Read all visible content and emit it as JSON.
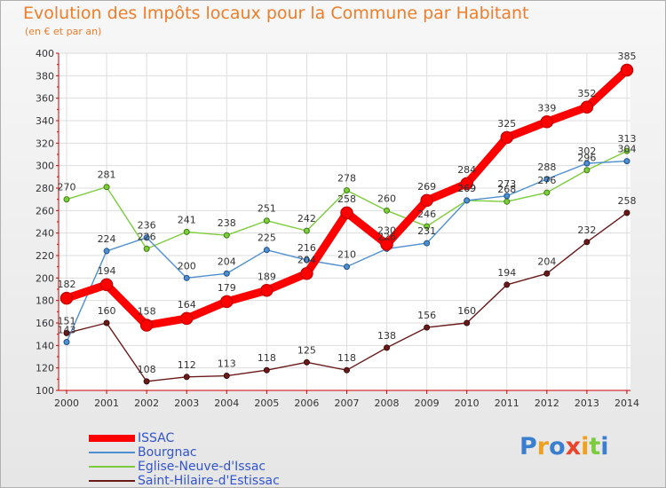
{
  "chart_data": {
    "type": "line",
    "title": "Evolution des Impôts locaux pour la Commune par Habitant",
    "subtitle": "(en € et par an)",
    "xlabel": "",
    "ylabel": "",
    "categories": [
      "2000",
      "2001",
      "2002",
      "2003",
      "2004",
      "2005",
      "2006",
      "2007",
      "2008",
      "2009",
      "2010",
      "2011",
      "2012",
      "2013",
      "2014"
    ],
    "ylim": [
      100,
      400
    ],
    "yticks": [
      100,
      120,
      140,
      160,
      180,
      200,
      220,
      240,
      260,
      280,
      300,
      320,
      340,
      360,
      380,
      400
    ],
    "grid": true,
    "legend_position": "bottom-left",
    "series": [
      {
        "name": "ISSAC",
        "color": "#ff0000",
        "values": [
          182,
          194,
          158,
          164,
          179,
          189,
          204,
          258,
          230,
          269,
          284,
          325,
          339,
          352,
          385
        ]
      },
      {
        "name": "Bourgnac",
        "color": "#4f8fd0",
        "values": [
          143,
          224,
          236,
          200,
          204,
          225,
          216,
          210,
          226,
          231,
          269,
          273,
          288,
          302,
          304
        ]
      },
      {
        "name": "Eglise-Neuve-d'Issac",
        "color": "#7ccc3c",
        "values": [
          270,
          281,
          226,
          241,
          238,
          251,
          242,
          278,
          260,
          246,
          269,
          268,
          276,
          296,
          313
        ]
      },
      {
        "name": "Saint-Hilaire-d'Estissac",
        "color": "#6b1a1a",
        "values": [
          151,
          160,
          108,
          112,
          113,
          118,
          125,
          118,
          138,
          156,
          160,
          194,
          204,
          232,
          258
        ]
      }
    ],
    "data_labels": {
      "ISSAC": [
        "182",
        "194",
        "158",
        "164",
        "179",
        "189",
        "204",
        "258",
        "230",
        "269",
        "284",
        "325",
        "339",
        "352",
        "385"
      ],
      "Bourgnac": [
        "143",
        "224",
        "236",
        "200",
        "204",
        "225",
        "216",
        "210",
        "226",
        "231",
        "269",
        "273",
        "288",
        "302",
        "304"
      ],
      "Eglise-Neuve-d'Issac": [
        "270",
        "281",
        "226",
        "241",
        "238",
        "251",
        "242",
        "278",
        "260",
        "246",
        "269",
        "268",
        "276",
        "296",
        "313"
      ],
      "Saint-Hilaire-d'Estissac": [
        "151",
        "160",
        "108",
        "112",
        "113",
        "118",
        "125",
        "118",
        "138",
        "156",
        "160",
        "194",
        "204",
        "232",
        "258"
      ]
    }
  },
  "logo": {
    "letters": [
      "P",
      "r",
      "o",
      "x",
      "i",
      "t",
      "i"
    ],
    "colors": [
      "#3a7fcf",
      "#f0a020",
      "#3a7fcf",
      "#e8452c",
      "#f0a020",
      "#7ccc3c",
      "#3a7fcf"
    ]
  }
}
